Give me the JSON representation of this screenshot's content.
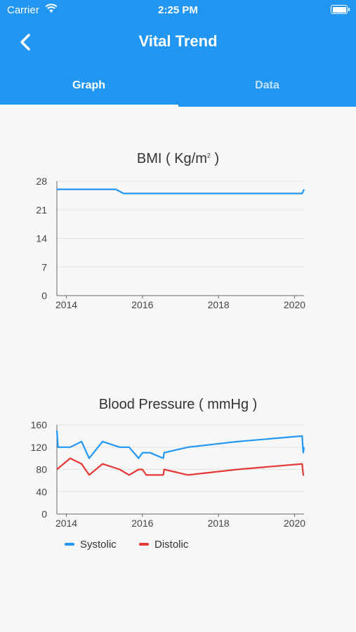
{
  "status_bar": {
    "carrier": "Carrier",
    "time": "2:25 PM"
  },
  "header": {
    "title": "Vital Trend"
  },
  "tabs": [
    {
      "label": "Graph",
      "selected": true
    },
    {
      "label": "Data",
      "selected": false
    }
  ],
  "colors": {
    "primary": "#2196f3",
    "systolic": "#2196f3",
    "distolic": "#e53935"
  },
  "charts": {
    "bmi": {
      "title_prefix": "BMI ( Kg/m",
      "title_sup": "2",
      "title_suffix": " )"
    },
    "bp": {
      "title": "Blood Pressure ( mmHg )"
    }
  },
  "chart_data": [
    {
      "type": "line",
      "title": "BMI ( Kg/m² )",
      "ylim": [
        0,
        28
      ],
      "y_ticks": [
        "0",
        "7",
        "14",
        "21",
        "28"
      ],
      "x_ticks": [
        "2014",
        "2016",
        "2018",
        "2020"
      ],
      "xlim": [
        2013.75,
        2020.25
      ],
      "grid": true,
      "series": [
        {
          "values": [
            [
              2013.75,
              26
            ],
            [
              2015.3,
              26
            ],
            [
              2015.5,
              25
            ],
            [
              2020.2,
              25
            ],
            [
              2020.25,
              26
            ]
          ]
        }
      ]
    },
    {
      "type": "line",
      "title": "Blood Pressure ( mmHg )",
      "ylim": [
        0,
        160
      ],
      "y_ticks": [
        "0",
        "40",
        "80",
        "120",
        "160"
      ],
      "x_ticks": [
        "2014",
        "2016",
        "2018",
        "2020"
      ],
      "xlim": [
        2013.75,
        2020.25
      ],
      "grid": true,
      "legend": "bottom-left",
      "series": [
        {
          "name": "Systolic",
          "values": [
            [
              2013.75,
              150
            ],
            [
              2013.78,
              120
            ],
            [
              2014.1,
              120
            ],
            [
              2014.4,
              130
            ],
            [
              2014.6,
              100
            ],
            [
              2014.95,
              130
            ],
            [
              2015.4,
              120
            ],
            [
              2015.65,
              120
            ],
            [
              2015.9,
              100
            ],
            [
              2016.0,
              110
            ],
            [
              2016.2,
              110
            ],
            [
              2016.55,
              100
            ],
            [
              2016.57,
              110
            ],
            [
              2017.2,
              120
            ],
            [
              2018.5,
              130
            ],
            [
              2020.2,
              140
            ],
            [
              2020.23,
              110
            ],
            [
              2020.25,
              120
            ]
          ]
        },
        {
          "name": "Distolic",
          "values": [
            [
              2013.75,
              80
            ],
            [
              2014.1,
              100
            ],
            [
              2014.4,
              90
            ],
            [
              2014.6,
              70
            ],
            [
              2014.95,
              90
            ],
            [
              2015.4,
              80
            ],
            [
              2015.65,
              70
            ],
            [
              2015.9,
              80
            ],
            [
              2016.0,
              80
            ],
            [
              2016.1,
              70
            ],
            [
              2016.55,
              70
            ],
            [
              2016.57,
              80
            ],
            [
              2017.2,
              70
            ],
            [
              2018.5,
              80
            ],
            [
              2020.2,
              90
            ],
            [
              2020.23,
              70
            ],
            [
              2020.25,
              70
            ]
          ]
        }
      ]
    }
  ]
}
